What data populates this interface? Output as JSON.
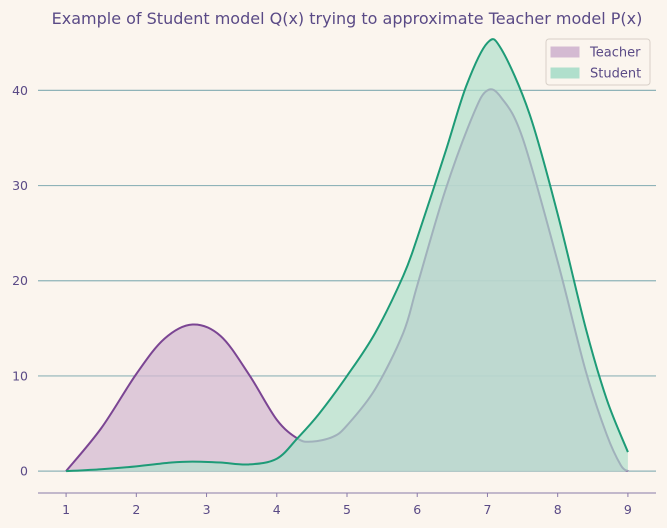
{
  "chart_data": {
    "type": "area",
    "title": "Example of Student model Q(x) trying to approximate Teacher model P(x)",
    "xlabel": "",
    "ylabel": "",
    "xlim": [
      0.6,
      9.4
    ],
    "ylim": [
      -2.3,
      45.5
    ],
    "x_ticks": [
      1,
      2,
      3,
      4,
      5,
      6,
      7,
      8,
      9
    ],
    "y_ticks": [
      0,
      10,
      20,
      30,
      40
    ],
    "grid": "horizontal",
    "legend_position": "top-right",
    "series": [
      {
        "name": "Teacher",
        "color": "#7b4593",
        "fill": "#d4bad2",
        "points": [
          [
            1,
            0
          ],
          [
            1.5,
            4.5
          ],
          [
            2,
            10.2
          ],
          [
            2.4,
            13.9
          ],
          [
            2.8,
            15.4
          ],
          [
            3.2,
            14.2
          ],
          [
            3.6,
            10.2
          ],
          [
            4,
            5.4
          ],
          [
            4.3,
            3.4
          ],
          [
            4.5,
            3.1
          ],
          [
            4.8,
            3.6
          ],
          [
            5,
            4.8
          ],
          [
            5.4,
            8.6
          ],
          [
            5.8,
            14.5
          ],
          [
            6,
            19.5
          ],
          [
            6.4,
            29.5
          ],
          [
            6.8,
            37.5
          ],
          [
            7,
            40
          ],
          [
            7.2,
            39.2
          ],
          [
            7.5,
            35
          ],
          [
            8,
            22
          ],
          [
            8.4,
            10.5
          ],
          [
            8.7,
            3.8
          ],
          [
            8.9,
            0.6
          ],
          [
            9,
            0
          ]
        ]
      },
      {
        "name": "Student",
        "color": "#1e9b77",
        "fill": "#b0dfcc",
        "points": [
          [
            1,
            0
          ],
          [
            1.5,
            0.2
          ],
          [
            2,
            0.5
          ],
          [
            2.5,
            0.9
          ],
          [
            2.8,
            1.0
          ],
          [
            3.2,
            0.9
          ],
          [
            3.6,
            0.7
          ],
          [
            4,
            1.3
          ],
          [
            4.3,
            3.5
          ],
          [
            4.6,
            6
          ],
          [
            5,
            10
          ],
          [
            5.4,
            14.5
          ],
          [
            5.8,
            20.5
          ],
          [
            6,
            24.5
          ],
          [
            6.4,
            33.5
          ],
          [
            6.7,
            40.5
          ],
          [
            7,
            45
          ],
          [
            7.2,
            44.3
          ],
          [
            7.6,
            37.5
          ],
          [
            8,
            27
          ],
          [
            8.4,
            15
          ],
          [
            8.7,
            7.5
          ],
          [
            9,
            2
          ]
        ]
      }
    ]
  }
}
